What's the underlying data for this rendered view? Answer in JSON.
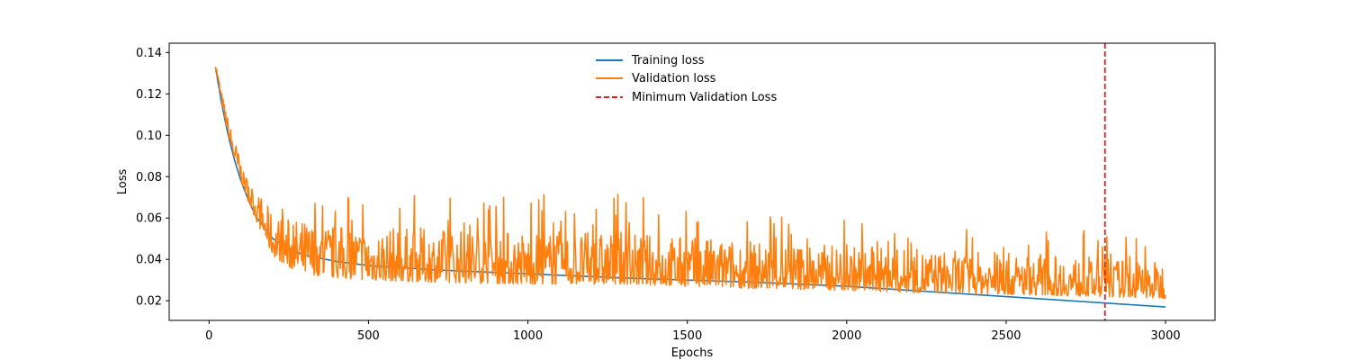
{
  "chart_data": {
    "type": "line",
    "title": "",
    "xlabel": "Epochs",
    "ylabel": "Loss",
    "xlim": [
      -125,
      3155
    ],
    "ylim": [
      0.0105,
      0.1445
    ],
    "xticks": [
      0,
      500,
      1000,
      1500,
      2000,
      2500,
      3000
    ],
    "yticks": [
      0.02,
      0.04,
      0.06,
      0.08,
      0.1,
      0.12,
      0.14
    ],
    "ytick_labels": [
      "0.02",
      "0.04",
      "0.06",
      "0.08",
      "0.10",
      "0.12",
      "0.14"
    ],
    "grid": false,
    "legend_position": "top-center",
    "series": [
      {
        "name": "Training loss",
        "color": "#1f77b4",
        "style": "solid",
        "x": [
          20,
          40,
          60,
          80,
          100,
          125,
          150,
          200,
          250,
          300,
          400,
          500,
          700,
          1000,
          1300,
          1500,
          1700,
          2000,
          2200,
          2500,
          2800,
          3000
        ],
        "y": [
          0.133,
          0.115,
          0.1,
          0.088,
          0.078,
          0.068,
          0.06,
          0.05,
          0.045,
          0.042,
          0.039,
          0.037,
          0.035,
          0.033,
          0.031,
          0.03,
          0.029,
          0.027,
          0.025,
          0.022,
          0.019,
          0.017
        ]
      },
      {
        "name": "Validation loss",
        "color": "#ff7f0e",
        "style": "solid",
        "noise_seed": 7,
        "x": [
          20,
          40,
          60,
          80,
          100,
          125,
          150,
          200,
          250,
          300,
          400,
          500,
          700,
          1000,
          1300,
          1500,
          1700,
          2000,
          2200,
          2500,
          2800,
          3000
        ],
        "base": [
          0.133,
          0.115,
          0.1,
          0.088,
          0.078,
          0.067,
          0.058,
          0.042,
          0.036,
          0.033,
          0.031,
          0.03,
          0.029,
          0.028,
          0.028,
          0.027,
          0.026,
          0.025,
          0.024,
          0.023,
          0.022,
          0.021
        ],
        "spread": [
          0.004,
          0.006,
          0.008,
          0.01,
          0.012,
          0.014,
          0.016,
          0.02,
          0.024,
          0.026,
          0.026,
          0.026,
          0.026,
          0.026,
          0.025,
          0.024,
          0.023,
          0.022,
          0.021,
          0.02,
          0.019,
          0.018
        ],
        "spike_max": [
          0.14,
          0.125,
          0.11,
          0.1,
          0.085,
          0.076,
          0.07,
          0.068,
          0.07,
          0.072,
          0.072,
          0.074,
          0.07,
          0.072,
          0.072,
          0.066,
          0.064,
          0.06,
          0.058,
          0.055,
          0.054,
          0.05
        ],
        "step": 2
      },
      {
        "name": "Minimum Validation Loss",
        "color": "#d62728",
        "style": "dashed",
        "vline_x": 2810
      }
    ]
  }
}
